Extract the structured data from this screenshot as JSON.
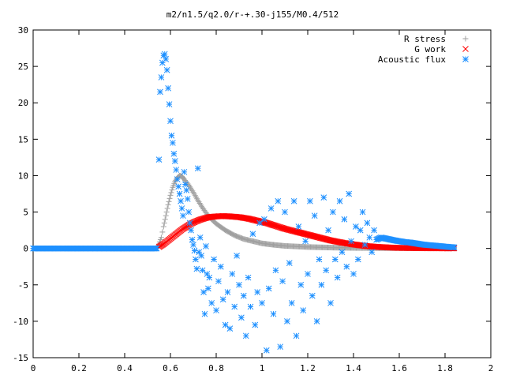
{
  "chart_data": {
    "type": "scatter",
    "title": "m2/n1.5/q2.0/r-+.30-j155/M0.4/512",
    "xlabel": "",
    "ylabel": "",
    "xlim": [
      0,
      2
    ],
    "ylim": [
      -15,
      30
    ],
    "xticks": [
      0,
      0.2,
      0.4,
      0.6,
      0.8,
      1,
      1.2,
      1.4,
      1.6,
      1.8,
      2
    ],
    "xtick_labels": [
      "0",
      "0.2",
      "0.4",
      "0.6",
      "0.8",
      "1",
      "1.2",
      "1.4",
      "1.6",
      "1.8",
      "2"
    ],
    "yticks": [
      -15,
      -10,
      -5,
      0,
      5,
      10,
      15,
      20,
      25,
      30
    ],
    "ytick_labels": [
      "-15",
      "-10",
      "-5",
      "0",
      "5",
      "10",
      "15",
      "20",
      "25",
      "30"
    ],
    "grid": false,
    "legend_position": "top-right",
    "series": [
      {
        "name": "R stress",
        "marker": "plus",
        "color": "#a0a0a0",
        "points": [
          [
            0.0,
            0
          ],
          [
            0.1,
            0
          ],
          [
            0.2,
            0
          ],
          [
            0.3,
            0
          ],
          [
            0.4,
            0
          ],
          [
            0.5,
            0
          ],
          [
            0.54,
            0
          ],
          [
            0.55,
            0.6
          ],
          [
            0.56,
            1.5
          ],
          [
            0.57,
            3.0
          ],
          [
            0.58,
            4.5
          ],
          [
            0.59,
            6.0
          ],
          [
            0.6,
            7.3
          ],
          [
            0.61,
            8.4
          ],
          [
            0.62,
            9.2
          ],
          [
            0.63,
            9.7
          ],
          [
            0.64,
            10.0
          ],
          [
            0.65,
            9.9
          ],
          [
            0.66,
            9.5
          ],
          [
            0.68,
            8.7
          ],
          [
            0.7,
            7.7
          ],
          [
            0.72,
            6.6
          ],
          [
            0.74,
            5.6
          ],
          [
            0.76,
            4.7
          ],
          [
            0.78,
            4.0
          ],
          [
            0.8,
            3.4
          ],
          [
            0.84,
            2.5
          ],
          [
            0.88,
            1.8
          ],
          [
            0.92,
            1.3
          ],
          [
            0.96,
            1.0
          ],
          [
            1.0,
            0.7
          ],
          [
            1.05,
            0.5
          ],
          [
            1.1,
            0.35
          ],
          [
            1.2,
            0.2
          ],
          [
            1.3,
            0.12
          ],
          [
            1.4,
            0.07
          ],
          [
            1.5,
            0.05
          ],
          [
            1.6,
            0.04
          ],
          [
            1.7,
            0.03
          ],
          [
            1.8,
            0.02
          ],
          [
            1.84,
            0.02
          ]
        ]
      },
      {
        "name": "G work",
        "marker": "cross",
        "color": "#ff0000",
        "points": [
          [
            0.55,
            0.2
          ],
          [
            0.57,
            0.6
          ],
          [
            0.59,
            1.1
          ],
          [
            0.61,
            1.6
          ],
          [
            0.63,
            2.1
          ],
          [
            0.65,
            2.6
          ],
          [
            0.67,
            3.0
          ],
          [
            0.69,
            3.4
          ],
          [
            0.71,
            3.7
          ],
          [
            0.73,
            3.95
          ],
          [
            0.75,
            4.15
          ],
          [
            0.77,
            4.3
          ],
          [
            0.8,
            4.4
          ],
          [
            0.83,
            4.45
          ],
          [
            0.86,
            4.4
          ],
          [
            0.9,
            4.3
          ],
          [
            0.94,
            4.1
          ],
          [
            0.98,
            3.8
          ],
          [
            1.02,
            3.5
          ],
          [
            1.06,
            3.1
          ],
          [
            1.1,
            2.7
          ],
          [
            1.15,
            2.3
          ],
          [
            1.2,
            1.9
          ],
          [
            1.25,
            1.5
          ],
          [
            1.3,
            1.1
          ],
          [
            1.35,
            0.8
          ],
          [
            1.4,
            0.55
          ],
          [
            1.45,
            0.35
          ],
          [
            1.5,
            0.22
          ],
          [
            1.55,
            0.14
          ],
          [
            1.6,
            0.08
          ],
          [
            1.7,
            0.04
          ],
          [
            1.8,
            0.02
          ],
          [
            1.84,
            0.01
          ]
        ]
      },
      {
        "name": "Acoustic flux",
        "marker": "star",
        "color": "#1e90ff",
        "points": [
          [
            0.0,
            0
          ],
          [
            0.05,
            0
          ],
          [
            0.1,
            0
          ],
          [
            0.15,
            0
          ],
          [
            0.2,
            0
          ],
          [
            0.25,
            0
          ],
          [
            0.3,
            0
          ],
          [
            0.35,
            0
          ],
          [
            0.4,
            0
          ],
          [
            0.45,
            0
          ],
          [
            0.5,
            0
          ],
          [
            0.54,
            0
          ],
          [
            0.55,
            12.2
          ],
          [
            0.555,
            21.5
          ],
          [
            0.56,
            23.5
          ],
          [
            0.565,
            25.5
          ],
          [
            0.57,
            26.5
          ],
          [
            0.575,
            26.7
          ],
          [
            0.58,
            26.0
          ],
          [
            0.585,
            24.5
          ],
          [
            0.59,
            22.0
          ],
          [
            0.595,
            19.8
          ],
          [
            0.6,
            17.5
          ],
          [
            0.605,
            15.5
          ],
          [
            0.61,
            14.5
          ],
          [
            0.615,
            13.0
          ],
          [
            0.62,
            12.0
          ],
          [
            0.625,
            10.8
          ],
          [
            0.63,
            9.5
          ],
          [
            0.635,
            8.5
          ],
          [
            0.64,
            7.5
          ],
          [
            0.645,
            6.5
          ],
          [
            0.65,
            5.5
          ],
          [
            0.655,
            4.5
          ],
          [
            0.66,
            10.5
          ],
          [
            0.665,
            8.8
          ],
          [
            0.67,
            8.0
          ],
          [
            0.675,
            6.8
          ],
          [
            0.68,
            5.0
          ],
          [
            0.685,
            3.5
          ],
          [
            0.69,
            2.5
          ],
          [
            0.695,
            1.2
          ],
          [
            0.7,
            0.5
          ],
          [
            0.705,
            -0.3
          ],
          [
            0.71,
            -1.5
          ],
          [
            0.715,
            -2.8
          ],
          [
            0.72,
            11.0
          ],
          [
            0.725,
            -0.5
          ],
          [
            0.73,
            1.5
          ],
          [
            0.735,
            -1.0
          ],
          [
            0.74,
            -3.0
          ],
          [
            0.745,
            -6.0
          ],
          [
            0.75,
            -9.0
          ],
          [
            0.755,
            0.3
          ],
          [
            0.76,
            -3.5
          ],
          [
            0.765,
            -5.5
          ],
          [
            0.77,
            -4.0
          ],
          [
            0.78,
            -7.5
          ],
          [
            0.79,
            -1.5
          ],
          [
            0.8,
            -8.5
          ],
          [
            0.81,
            -4.5
          ],
          [
            0.82,
            -2.5
          ],
          [
            0.83,
            -7.0
          ],
          [
            0.84,
            -10.5
          ],
          [
            0.85,
            -6.0
          ],
          [
            0.86,
            -11.0
          ],
          [
            0.87,
            -3.5
          ],
          [
            0.88,
            -8.0
          ],
          [
            0.89,
            -1.0
          ],
          [
            0.9,
            -5.0
          ],
          [
            0.91,
            -9.5
          ],
          [
            0.92,
            -6.5
          ],
          [
            0.93,
            -12.0
          ],
          [
            0.94,
            -4.0
          ],
          [
            0.95,
            -8.0
          ],
          [
            0.96,
            2.0
          ],
          [
            0.97,
            -10.5
          ],
          [
            0.98,
            -6.0
          ],
          [
            0.99,
            3.5
          ],
          [
            1.0,
            -7.5
          ],
          [
            1.01,
            4.0
          ],
          [
            1.02,
            -14.0
          ],
          [
            1.03,
            -5.5
          ],
          [
            1.04,
            5.5
          ],
          [
            1.05,
            -9.0
          ],
          [
            1.06,
            -3.0
          ],
          [
            1.07,
            6.5
          ],
          [
            1.08,
            -13.5
          ],
          [
            1.09,
            -4.5
          ],
          [
            1.1,
            5.0
          ],
          [
            1.11,
            -10.0
          ],
          [
            1.12,
            -2.0
          ],
          [
            1.13,
            -7.5
          ],
          [
            1.14,
            6.5
          ],
          [
            1.15,
            -12.0
          ],
          [
            1.16,
            3.0
          ],
          [
            1.17,
            -5.0
          ],
          [
            1.18,
            -8.5
          ],
          [
            1.19,
            1.0
          ],
          [
            1.2,
            -3.5
          ],
          [
            1.21,
            6.5
          ],
          [
            1.22,
            -6.5
          ],
          [
            1.23,
            4.5
          ],
          [
            1.24,
            -10.0
          ],
          [
            1.25,
            -1.5
          ],
          [
            1.26,
            -5.0
          ],
          [
            1.27,
            7.0
          ],
          [
            1.28,
            -3.0
          ],
          [
            1.29,
            2.5
          ],
          [
            1.3,
            -7.5
          ],
          [
            1.31,
            5.0
          ],
          [
            1.32,
            -1.5
          ],
          [
            1.33,
            -4.0
          ],
          [
            1.34,
            6.5
          ],
          [
            1.35,
            -0.5
          ],
          [
            1.36,
            4.0
          ],
          [
            1.37,
            -2.5
          ],
          [
            1.38,
            7.5
          ],
          [
            1.39,
            1.0
          ],
          [
            1.4,
            -3.5
          ],
          [
            1.41,
            3.0
          ],
          [
            1.42,
            -1.5
          ],
          [
            1.43,
            2.5
          ],
          [
            1.44,
            5.0
          ],
          [
            1.45,
            0.5
          ],
          [
            1.46,
            3.5
          ],
          [
            1.47,
            1.5
          ],
          [
            1.48,
            -0.5
          ],
          [
            1.49,
            2.5
          ],
          [
            1.5,
            1.2
          ],
          [
            1.52,
            1.5
          ],
          [
            1.55,
            1.3
          ],
          [
            1.58,
            1.1
          ],
          [
            1.6,
            1.0
          ],
          [
            1.62,
            0.9
          ],
          [
            1.65,
            0.8
          ],
          [
            1.68,
            0.65
          ],
          [
            1.7,
            0.55
          ],
          [
            1.72,
            0.48
          ],
          [
            1.75,
            0.4
          ],
          [
            1.78,
            0.32
          ],
          [
            1.8,
            0.25
          ],
          [
            1.82,
            0.2
          ],
          [
            1.84,
            0.15
          ]
        ]
      }
    ]
  }
}
